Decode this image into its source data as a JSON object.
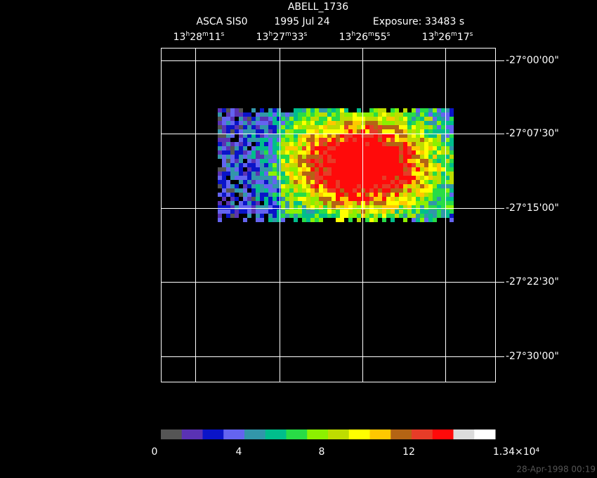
{
  "header": {
    "title": "ABELL_1736",
    "instrument": "ASCA SIS0",
    "date": "1995 Jul 24",
    "exposure": "Exposure: 33483 s"
  },
  "ra_labels": [
    "13h28m11s",
    "13h27m33s",
    "13h26m55s",
    "13h26m17s"
  ],
  "dec_labels": [
    "-27°00'00\"",
    "-27°07'30\"",
    "-27°15'00\"",
    "-27°22'30\"",
    "-27°30'00\""
  ],
  "colorbar": {
    "colors": [
      "#555555",
      "#5a32b4",
      "#0a14c8",
      "#6464f0",
      "#3296aa",
      "#00be8c",
      "#28dc46",
      "#8cf000",
      "#bedc00",
      "#ffff00",
      "#ffc800",
      "#b46414",
      "#e63c28",
      "#ff0a0a",
      "#dcdcdc",
      "#ffffff"
    ],
    "labels": [
      "0",
      "4",
      "8",
      "12",
      "1.34×10⁴"
    ]
  },
  "timestamp": "28-Apr-1998 00:19"
}
